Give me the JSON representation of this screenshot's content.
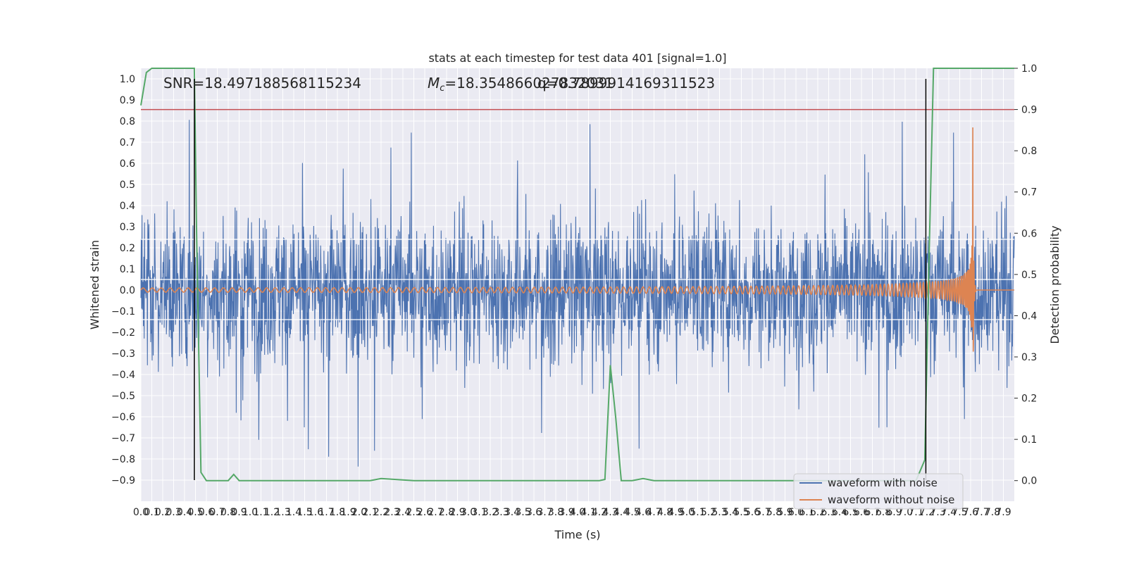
{
  "chart_data": {
    "type": "line",
    "title": "stats at each timestep for test data 401 [signal=1.0]",
    "xlabel": "Time (s)",
    "ylabel": "Whitened strain",
    "y2label": "Detection probability",
    "xlim": [
      0.0,
      8.0
    ],
    "ylim": [
      -1.0,
      1.05
    ],
    "y2lim": [
      -0.05,
      1.0
    ],
    "x_ticks": [
      "0.0",
      "0.1",
      "0.2",
      "0.3",
      "0.4",
      "0.5",
      "0.6",
      "0.7",
      "0.8",
      "0.9",
      "1.0",
      "1.1",
      "1.2",
      "1.3",
      "1.4",
      "1.5",
      "1.6",
      "1.7",
      "1.8",
      "1.9",
      "2.0",
      "2.1",
      "2.2",
      "2.3",
      "2.4",
      "2.5",
      "2.6",
      "2.7",
      "2.8",
      "2.9",
      "3.0",
      "3.1",
      "3.2",
      "3.3",
      "3.4",
      "3.5",
      "3.6",
      "3.7",
      "3.8",
      "3.9",
      "4.0",
      "4.1",
      "4.2",
      "4.3",
      "4.4",
      "4.5",
      "4.6",
      "4.7",
      "4.8",
      "4.9",
      "5.0",
      "5.1",
      "5.2",
      "5.3",
      "5.4",
      "5.5",
      "5.6",
      "5.7",
      "5.8",
      "5.9",
      "6.0",
      "6.1",
      "6.2",
      "6.3",
      "6.4",
      "6.5",
      "6.6",
      "6.7",
      "6.8",
      "6.9",
      "7.0",
      "7.1",
      "7.2",
      "7.3",
      "7.4",
      "7.5",
      "7.6",
      "7.7",
      "7.8",
      "7.9"
    ],
    "y_ticks": [
      "1.0",
      "0.9",
      "0.8",
      "0.7",
      "0.6",
      "0.5",
      "0.4",
      "0.3",
      "0.2",
      "0.1",
      "0.0",
      "−0.1",
      "−0.2",
      "−0.3",
      "−0.4",
      "−0.5",
      "−0.6",
      "−0.7",
      "−0.8",
      "−0.9"
    ],
    "y2_ticks": [
      "1.0",
      "0.9",
      "0.8",
      "0.7",
      "0.6",
      "0.5",
      "0.4",
      "0.3",
      "0.2",
      "0.1",
      "0.0"
    ],
    "grid": true,
    "legend_position": "lower-right",
    "annotations": {
      "snr": "SNR=18.497188568115234",
      "mc": "=18.354866027832031",
      "mc_symbol": "M",
      "mc_sub": "c",
      "q": "q=0.7899914169311523"
    },
    "threshold_y2": 0.9,
    "vertical_markers_x": [
      0.49,
      7.19
    ],
    "hlines_y": [
      0.24,
      0.05,
      -0.14
    ],
    "series": [
      {
        "name": "waveform with noise",
        "color": "#4c72b0",
        "kind": "noise",
        "amplitude_typical": 0.35,
        "amplitude_max": 0.84
      },
      {
        "name": "waveform without noise",
        "color": "#dd8452",
        "kind": "chirp",
        "amplitude_start": 0.01,
        "amplitude_peak": 0.77,
        "merger_x": 7.62
      },
      {
        "name": "detection probability",
        "color": "#55a868",
        "kind": "probability",
        "x": [
          0.0,
          0.05,
          0.1,
          0.2,
          0.3,
          0.4,
          0.45,
          0.49,
          0.51,
          0.55,
          0.6,
          0.7,
          0.8,
          0.85,
          0.9,
          1.0,
          1.5,
          2.0,
          2.1,
          2.2,
          2.5,
          3.0,
          3.5,
          4.0,
          4.2,
          4.25,
          4.3,
          4.35,
          4.4,
          4.45,
          4.5,
          4.6,
          4.7,
          4.8,
          5.0,
          5.5,
          6.0,
          6.5,
          7.0,
          7.1,
          7.18,
          7.22,
          7.26,
          7.3,
          7.4,
          7.6,
          8.0
        ],
        "y": [
          0.91,
          0.99,
          1.0,
          1.0,
          1.0,
          1.0,
          1.0,
          1.0,
          0.6,
          0.02,
          0.0,
          0.0,
          0.0,
          0.015,
          0.0,
          0.0,
          0.0,
          0.0,
          0.0,
          0.005,
          0.0,
          0.0,
          0.0,
          0.0,
          0.0,
          0.003,
          0.28,
          0.15,
          0.0,
          0.0,
          0.0,
          0.005,
          0.0,
          0.0,
          0.0,
          0.0,
          0.0,
          0.0,
          0.0,
          0.0,
          0.05,
          0.55,
          1.0,
          1.0,
          1.0,
          1.0,
          1.0
        ]
      }
    ]
  }
}
